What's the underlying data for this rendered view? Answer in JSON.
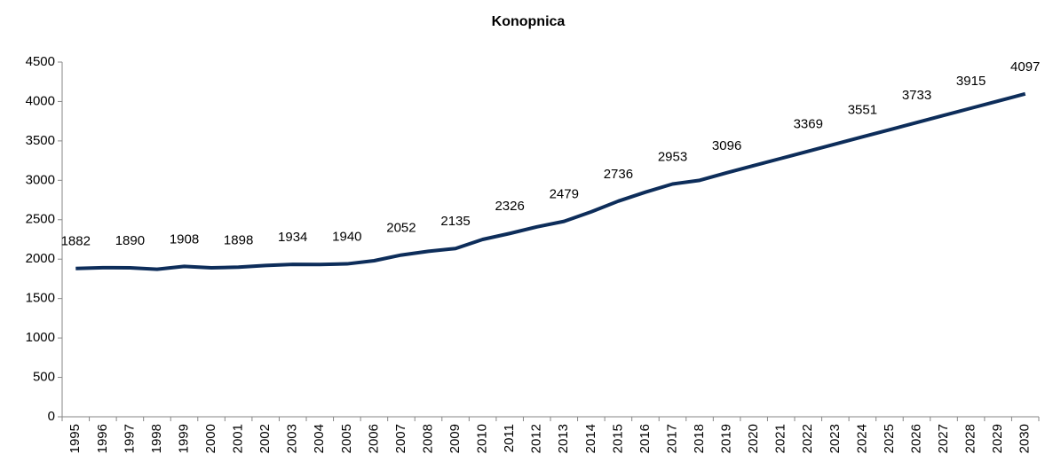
{
  "chart_data": {
    "type": "line",
    "title": "Konopnica",
    "categories": [
      "1995",
      "1996",
      "1997",
      "1998",
      "1999",
      "2000",
      "2001",
      "2002",
      "2003",
      "2004",
      "2005",
      "2006",
      "2007",
      "2008",
      "2009",
      "2010",
      "2011",
      "2012",
      "2013",
      "2014",
      "2015",
      "2016",
      "2017",
      "2018",
      "2019",
      "2020",
      "2021",
      "2022",
      "2023",
      "2024",
      "2025",
      "2026",
      "2027",
      "2028",
      "2029",
      "2030"
    ],
    "series": [
      {
        "name": "Konopnica",
        "color": "#0d2d5a",
        "values": [
          1882,
          1892,
          1890,
          1872,
          1908,
          1890,
          1898,
          1920,
          1934,
          1932,
          1940,
          1980,
          2052,
          2100,
          2135,
          2250,
          2326,
          2410,
          2479,
          2600,
          2736,
          2850,
          2953,
          3000,
          3096,
          3187,
          3278,
          3369,
          3460,
          3551,
          3642,
          3733,
          3824,
          3915,
          4006,
          4097
        ],
        "value_labels": [
          "1882",
          null,
          "1890",
          null,
          "1908",
          null,
          "1898",
          null,
          "1934",
          null,
          "1940",
          null,
          "2052",
          null,
          "2135",
          null,
          "2326",
          null,
          "2479",
          null,
          "2736",
          null,
          "2953",
          null,
          "3096",
          null,
          null,
          "3369",
          null,
          "3551",
          null,
          "3733",
          null,
          "3915",
          null,
          "4097"
        ]
      }
    ],
    "ylim": [
      0,
      4500
    ],
    "yticks": [
      0,
      500,
      1000,
      1500,
      2000,
      2500,
      3000,
      3500,
      4000,
      4500
    ],
    "grid": false
  }
}
